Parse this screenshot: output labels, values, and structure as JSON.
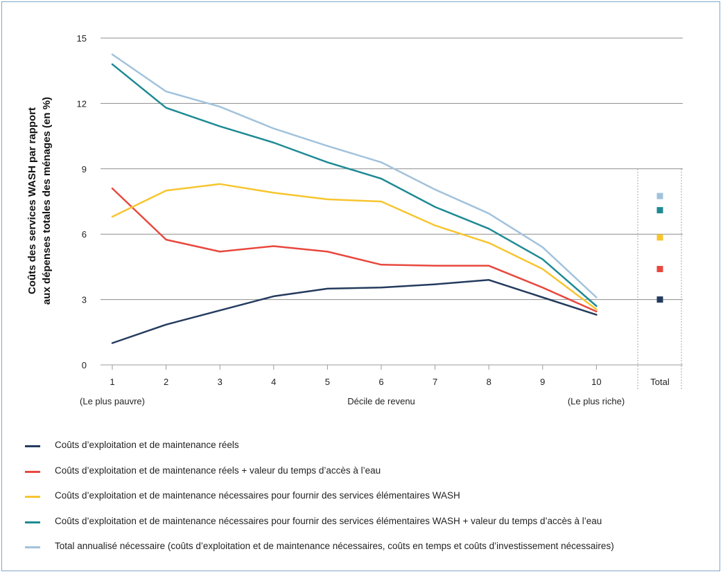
{
  "chart_data": {
    "type": "line",
    "title": "",
    "ylabel_lines": [
      "Coûts des services WASH par rapport",
      "aux dépenses totales des ménages (en %)"
    ],
    "xlabel": "Décile de revenu",
    "x_left_note": "(Le plus pauvre)",
    "x_right_note": "(Le plus riche)",
    "categories": [
      "1",
      "2",
      "3",
      "4",
      "5",
      "6",
      "7",
      "8",
      "9",
      "10"
    ],
    "total_label": "Total",
    "ylim": [
      0,
      15
    ],
    "yticks": [
      "0",
      "3",
      "6",
      "9",
      "12",
      "15"
    ],
    "grid": true,
    "legend_position": "bottom",
    "series": [
      {
        "name": "Coûts d’exploitation et de maintenance réels",
        "color": "#243b5e",
        "values": [
          1.0,
          1.85,
          2.5,
          3.15,
          3.5,
          3.55,
          3.7,
          3.9,
          3.1,
          2.3
        ],
        "total": 3.0
      },
      {
        "name": "Coûts d’exploitation et de maintenance réels + valeur du temps d’accès à l’eau",
        "color": "#e8483e",
        "values": [
          8.1,
          5.75,
          5.2,
          5.45,
          5.2,
          4.6,
          4.55,
          4.55,
          3.55,
          2.45
        ],
        "total": 4.4
      },
      {
        "name": "Coûts d’exploitation et de maintenance nécessaires pour fournir des services élémentaires WASH",
        "color": "#f7c52e",
        "values": [
          6.8,
          8.0,
          8.3,
          7.9,
          7.6,
          7.5,
          6.4,
          5.6,
          4.4,
          2.55
        ],
        "total": 5.85
      },
      {
        "name": "Coûts d’exploitation et de maintenance nécessaires pour fournir des services élémentaires WASH + valeur du temps d’accès à l’eau",
        "color": "#1e8a94",
        "values": [
          13.8,
          11.8,
          10.95,
          10.2,
          9.3,
          8.55,
          7.25,
          6.25,
          4.85,
          2.7
        ],
        "total": 7.1
      },
      {
        "name": "Total annualisé nécessaire (coûts d’exploitation et de maintenance nécessaires, coûts en temps et coûts d’investissement nécessaires)",
        "color": "#a1c2dc",
        "values": [
          14.25,
          12.55,
          11.85,
          10.85,
          10.05,
          9.3,
          8.05,
          6.95,
          5.4,
          3.1
        ],
        "total": 7.75
      }
    ]
  }
}
